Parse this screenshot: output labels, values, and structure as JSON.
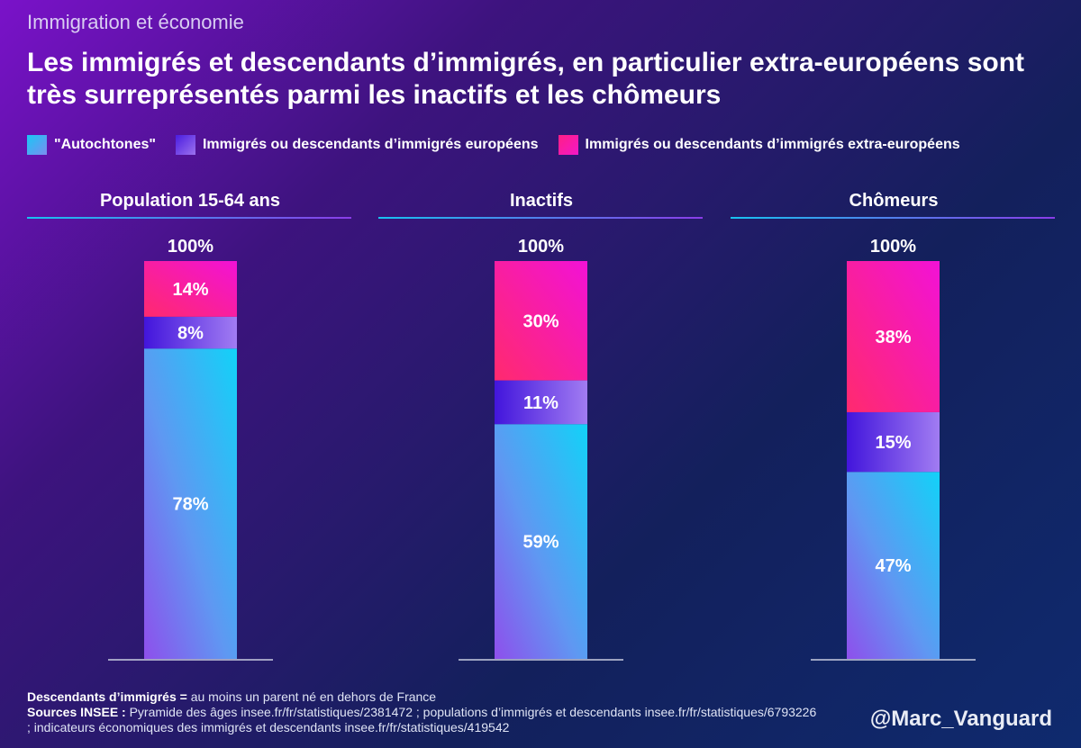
{
  "kicker": "Immigration et économie",
  "title": "Les immigrés et descendants d’immigrés, en particulier extra-européens sont très surreprésentés parmi les inactifs et les chômeurs",
  "legend": [
    {
      "label": "\"Autochtones\"",
      "color": "#3fb0f5"
    },
    {
      "label": "Immigrés ou descendants d’immigrés européens",
      "color": "#6b3de8"
    },
    {
      "label": "Immigrés ou descendants d’immigrés extra-européens",
      "color": "#ff1fa8"
    }
  ],
  "chart_data": {
    "type": "bar",
    "stacked": true,
    "categories": [
      "Population 15-64 ans",
      "Inactifs",
      "Chômeurs"
    ],
    "series": [
      {
        "name": "\"Autochtones\"",
        "values": [
          78,
          59,
          47
        ],
        "labels": [
          "78%",
          "59%",
          "47%"
        ]
      },
      {
        "name": "Immigrés ou descendants d’immigrés européens",
        "values": [
          8,
          11,
          15
        ],
        "labels": [
          "8%",
          "11%",
          "15%"
        ]
      },
      {
        "name": "Immigrés ou descendants d’immigrés extra-européens",
        "values": [
          14,
          30,
          38
        ],
        "labels": [
          "14%",
          "30%",
          "38%"
        ]
      }
    ],
    "totals": [
      "100%",
      "100%",
      "100%"
    ],
    "ylim": [
      0,
      100
    ],
    "unit": "%"
  },
  "footnote": {
    "def_label": "Descendants d’immigrés =",
    "def_text": "au moins un parent né en dehors de France",
    "sources_label": "Sources INSEE :",
    "sources_text": "Pyramide des âges insee.fr/fr/statistiques/2381472 ; populations d’immigrés et descendants insee.fr/fr/statistiques/6793226 ; indicateurs économiques des immigrés et descendants insee.fr/fr/statistiques/419542"
  },
  "handle": "@Marc_Vanguard"
}
